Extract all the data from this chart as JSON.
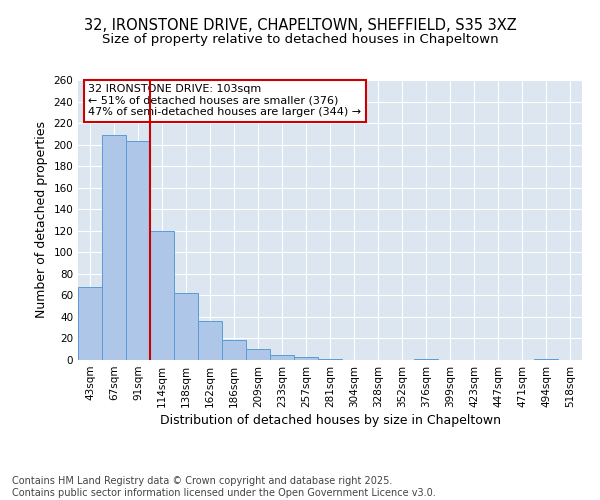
{
  "title1": "32, IRONSTONE DRIVE, CHAPELTOWN, SHEFFIELD, S35 3XZ",
  "title2": "Size of property relative to detached houses in Chapeltown",
  "xlabel": "Distribution of detached houses by size in Chapeltown",
  "ylabel": "Number of detached properties",
  "categories": [
    "43sqm",
    "67sqm",
    "91sqm",
    "114sqm",
    "138sqm",
    "162sqm",
    "186sqm",
    "209sqm",
    "233sqm",
    "257sqm",
    "281sqm",
    "304sqm",
    "328sqm",
    "352sqm",
    "376sqm",
    "399sqm",
    "423sqm",
    "447sqm",
    "471sqm",
    "494sqm",
    "518sqm"
  ],
  "values": [
    68,
    209,
    203,
    120,
    62,
    36,
    19,
    10,
    5,
    3,
    1,
    0,
    0,
    0,
    1,
    0,
    0,
    0,
    0,
    1,
    0
  ],
  "bar_color": "#aec6e8",
  "bar_edge_color": "#5b9bd5",
  "vline_x": 2.5,
  "vline_color": "#cc0000",
  "annotation_text": "32 IRONSTONE DRIVE: 103sqm\n← 51% of detached houses are smaller (376)\n47% of semi-detached houses are larger (344) →",
  "annotation_box_color": "#ffffff",
  "annotation_box_edge": "#cc0000",
  "ylim": [
    0,
    260
  ],
  "yticks": [
    0,
    20,
    40,
    60,
    80,
    100,
    120,
    140,
    160,
    180,
    200,
    220,
    240,
    260
  ],
  "bg_color": "#dce6f0",
  "grid_color": "#ffffff",
  "footer_text": "Contains HM Land Registry data © Crown copyright and database right 2025.\nContains public sector information licensed under the Open Government Licence v3.0.",
  "title_fontsize": 10.5,
  "subtitle_fontsize": 9.5,
  "label_fontsize": 9,
  "tick_fontsize": 7.5,
  "footer_fontsize": 7,
  "annotation_fontsize": 8
}
